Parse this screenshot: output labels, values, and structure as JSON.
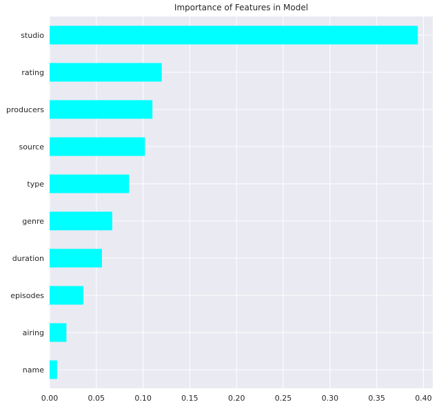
{
  "chart_data": {
    "type": "bar",
    "orientation": "horizontal",
    "title": "Importance of Features in Model",
    "xlabel": "",
    "ylabel": "",
    "categories": [
      "studio",
      "rating",
      "producers",
      "source",
      "type",
      "genre",
      "duration",
      "episodes",
      "airing",
      "name"
    ],
    "values": [
      0.394,
      0.12,
      0.11,
      0.102,
      0.085,
      0.067,
      0.056,
      0.036,
      0.018,
      0.008
    ],
    "xlim": [
      0,
      0.41
    ],
    "xticks": [
      "0.00",
      "0.05",
      "0.10",
      "0.15",
      "0.20",
      "0.25",
      "0.30",
      "0.35",
      "0.40"
    ],
    "grid": true,
    "legend": "none",
    "colors": {
      "bar": "#00ffff",
      "background": "#eaeaf2",
      "grid": "#ffffff"
    }
  }
}
